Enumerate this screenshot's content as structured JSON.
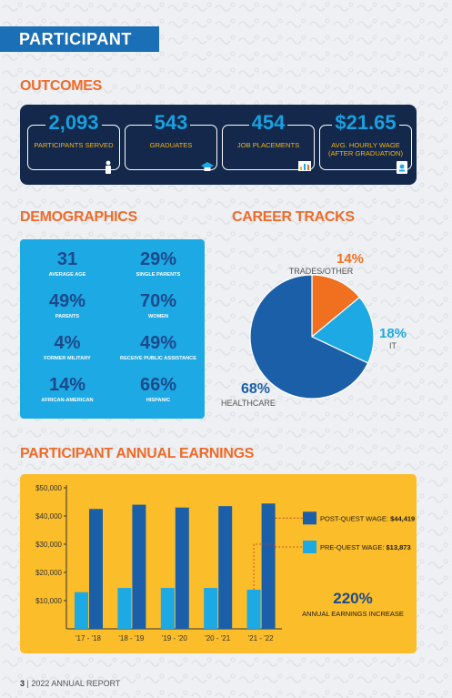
{
  "header": {
    "title": "PARTICIPANT"
  },
  "outcomes": {
    "title": "OUTCOMES",
    "cards": [
      {
        "value": "2,093",
        "label": "PARTICIPANTS SERVED",
        "icon": "person-icon"
      },
      {
        "value": "543",
        "label": "GRADUATES",
        "icon": "graduation-cap-icon"
      },
      {
        "value": "454",
        "label": "JOB PLACEMENTS",
        "icon": "chart-board-icon"
      },
      {
        "value": "$21.65",
        "label": "AVG. HOURLY WAGE (AFTER GRADUATION)",
        "icon": "id-badge-icon"
      }
    ]
  },
  "demographics": {
    "title": "DEMOGRAPHICS",
    "stats": [
      {
        "value": "31",
        "label": "AVERAGE AGE"
      },
      {
        "value": "29%",
        "label": "SINGLE PARENTS"
      },
      {
        "value": "49%",
        "label": "PARENTS"
      },
      {
        "value": "70%",
        "label": "WOMEN"
      },
      {
        "value": "4%",
        "label": "FORMER MILITARY"
      },
      {
        "value": "49%",
        "label": "RECEIVE PUBLIC ASSISTANCE"
      },
      {
        "value": "14%",
        "label": "AFRICAN-AMERICAN"
      },
      {
        "value": "66%",
        "label": "HISPANIC"
      }
    ]
  },
  "career_tracks": {
    "title": "CAREER TRACKS",
    "slices": [
      {
        "label": "TRADES/OTHER",
        "pct": "14%",
        "color": "#f07020"
      },
      {
        "label": "IT",
        "pct": "18%",
        "color": "#1da9e4"
      },
      {
        "label": "HEALTHCARE",
        "pct": "68%",
        "color": "#1b5fa8"
      }
    ]
  },
  "earnings": {
    "title": "PARTICIPANT ANNUAL EARNINGS",
    "legend": [
      {
        "label": "POST-QUEST WAGE:",
        "value": "$44,419",
        "color": "#1b5fa8"
      },
      {
        "label": "PRE-QUEST WAGE:",
        "value": "$13,873",
        "color": "#1da9e4"
      }
    ],
    "increase_value": "220%",
    "increase_label": "ANNUAL EARNINGS INCREASE"
  },
  "footer": {
    "page": "3",
    "text": "2022 ANNUAL REPORT"
  },
  "chart_data": [
    {
      "type": "pie",
      "title": "CAREER TRACKS",
      "categories": [
        "TRADES/OTHER",
        "IT",
        "HEALTHCARE"
      ],
      "values": [
        14,
        18,
        68
      ],
      "colors": [
        "#f07020",
        "#1da9e4",
        "#1b5fa8"
      ]
    },
    {
      "type": "bar",
      "title": "PARTICIPANT ANNUAL EARNINGS",
      "categories": [
        "'17 - '18",
        "'18 - '19",
        "'19 - '20",
        "'20 - '21",
        "'21 - '22"
      ],
      "series": [
        {
          "name": "PRE-QUEST WAGE",
          "values": [
            13000,
            14500,
            14500,
            14500,
            13873
          ],
          "color": "#1da9e4"
        },
        {
          "name": "POST-QUEST WAGE",
          "values": [
            42500,
            44000,
            43000,
            43500,
            44419
          ],
          "color": "#1b5fa8"
        }
      ],
      "yticks": [
        "$10,000",
        "$20,000",
        "$30,000",
        "$40,000",
        "$50,000"
      ],
      "ylim": [
        0,
        50000
      ],
      "grid": false,
      "legend": "right"
    }
  ]
}
